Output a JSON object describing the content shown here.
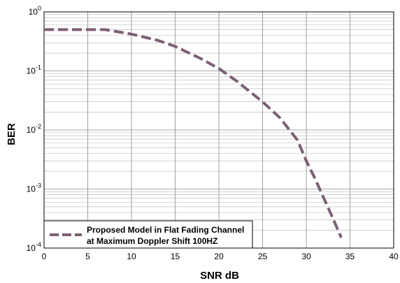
{
  "chart_data": {
    "type": "line",
    "xlabel": "SNR dB",
    "ylabel": "BER",
    "xlim": [
      0,
      40
    ],
    "ylim": [
      0.0001,
      1
    ],
    "y_scale": "log",
    "grid": true,
    "legend_position": "bottom-left",
    "x_ticks": [
      "0",
      "5",
      "10",
      "15",
      "20",
      "25",
      "30",
      "35",
      "40"
    ],
    "y_tick_bases": [
      "10",
      "10",
      "10",
      "10",
      "10"
    ],
    "y_tick_exponents": [
      "-4",
      "-3",
      "-2",
      "-1",
      "0"
    ],
    "series": [
      {
        "name": "Proposed Model in Flat Fading Channel at Maximum Doppler Shift 100HZ",
        "legend_lines": [
          "Proposed Model in Flat Fading Channel",
          "at Maximum Doppler Shift 100HZ"
        ],
        "color": "#7d5f75",
        "style": "dashed",
        "x": [
          0,
          4,
          7,
          10,
          13,
          15,
          18,
          20,
          22,
          25,
          27,
          29,
          30,
          31,
          32,
          33,
          34
        ],
        "y": [
          0.5,
          0.5,
          0.5,
          0.42,
          0.33,
          0.26,
          0.16,
          0.11,
          0.068,
          0.03,
          0.016,
          0.0067,
          0.003,
          0.0015,
          0.0007,
          0.00033,
          0.00015
        ]
      }
    ]
  }
}
